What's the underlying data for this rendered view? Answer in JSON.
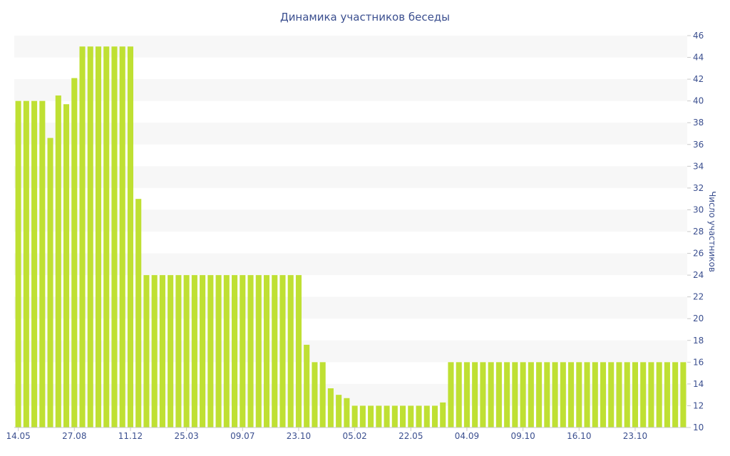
{
  "chart_data": {
    "type": "bar",
    "title": "Динамика участников беседы",
    "xlabel": "",
    "ylabel": "Число участников",
    "ylim": [
      10,
      46
    ],
    "yticks": [
      10,
      12,
      14,
      16,
      18,
      20,
      22,
      24,
      26,
      28,
      30,
      32,
      34,
      36,
      38,
      40,
      42,
      44,
      46
    ],
    "y_axis_position": "right",
    "grid": "horizontal alternating bands",
    "bar_color": "#bfe033",
    "band_color": "#f7f7f7",
    "text_color": "#3b4f8f",
    "x_tick_labels": [
      {
        "label": "14.05",
        "index": 0
      },
      {
        "label": "27.08",
        "index": 7
      },
      {
        "label": "11.12",
        "index": 14
      },
      {
        "label": "25.03",
        "index": 21
      },
      {
        "label": "09.07",
        "index": 28
      },
      {
        "label": "23.10",
        "index": 35
      },
      {
        "label": "05.02",
        "index": 42
      },
      {
        "label": "22.05",
        "index": 49
      },
      {
        "label": "04.09",
        "index": 56
      },
      {
        "label": "09.10",
        "index": 63
      },
      {
        "label": "16.10",
        "index": 70
      },
      {
        "label": "23.10",
        "index": 77
      }
    ],
    "values": [
      40,
      40,
      40,
      40,
      36.6,
      40.5,
      39.7,
      42.1,
      45,
      45,
      45,
      45,
      45,
      45,
      45,
      31,
      24,
      24,
      24,
      24,
      24,
      24,
      24,
      24,
      24,
      24,
      24,
      24,
      24,
      24,
      24,
      24,
      24,
      24,
      24,
      24,
      17.6,
      16,
      16,
      13.6,
      13,
      12.7,
      12,
      12,
      12,
      12,
      12,
      12,
      12,
      12,
      12,
      12,
      12,
      12.3,
      16,
      16,
      16,
      16,
      16,
      16,
      16,
      16,
      16,
      16,
      16,
      16,
      16,
      16,
      16,
      16,
      16,
      16,
      16,
      16,
      16,
      16,
      16,
      16,
      16,
      16,
      16,
      16,
      16,
      16
    ]
  }
}
